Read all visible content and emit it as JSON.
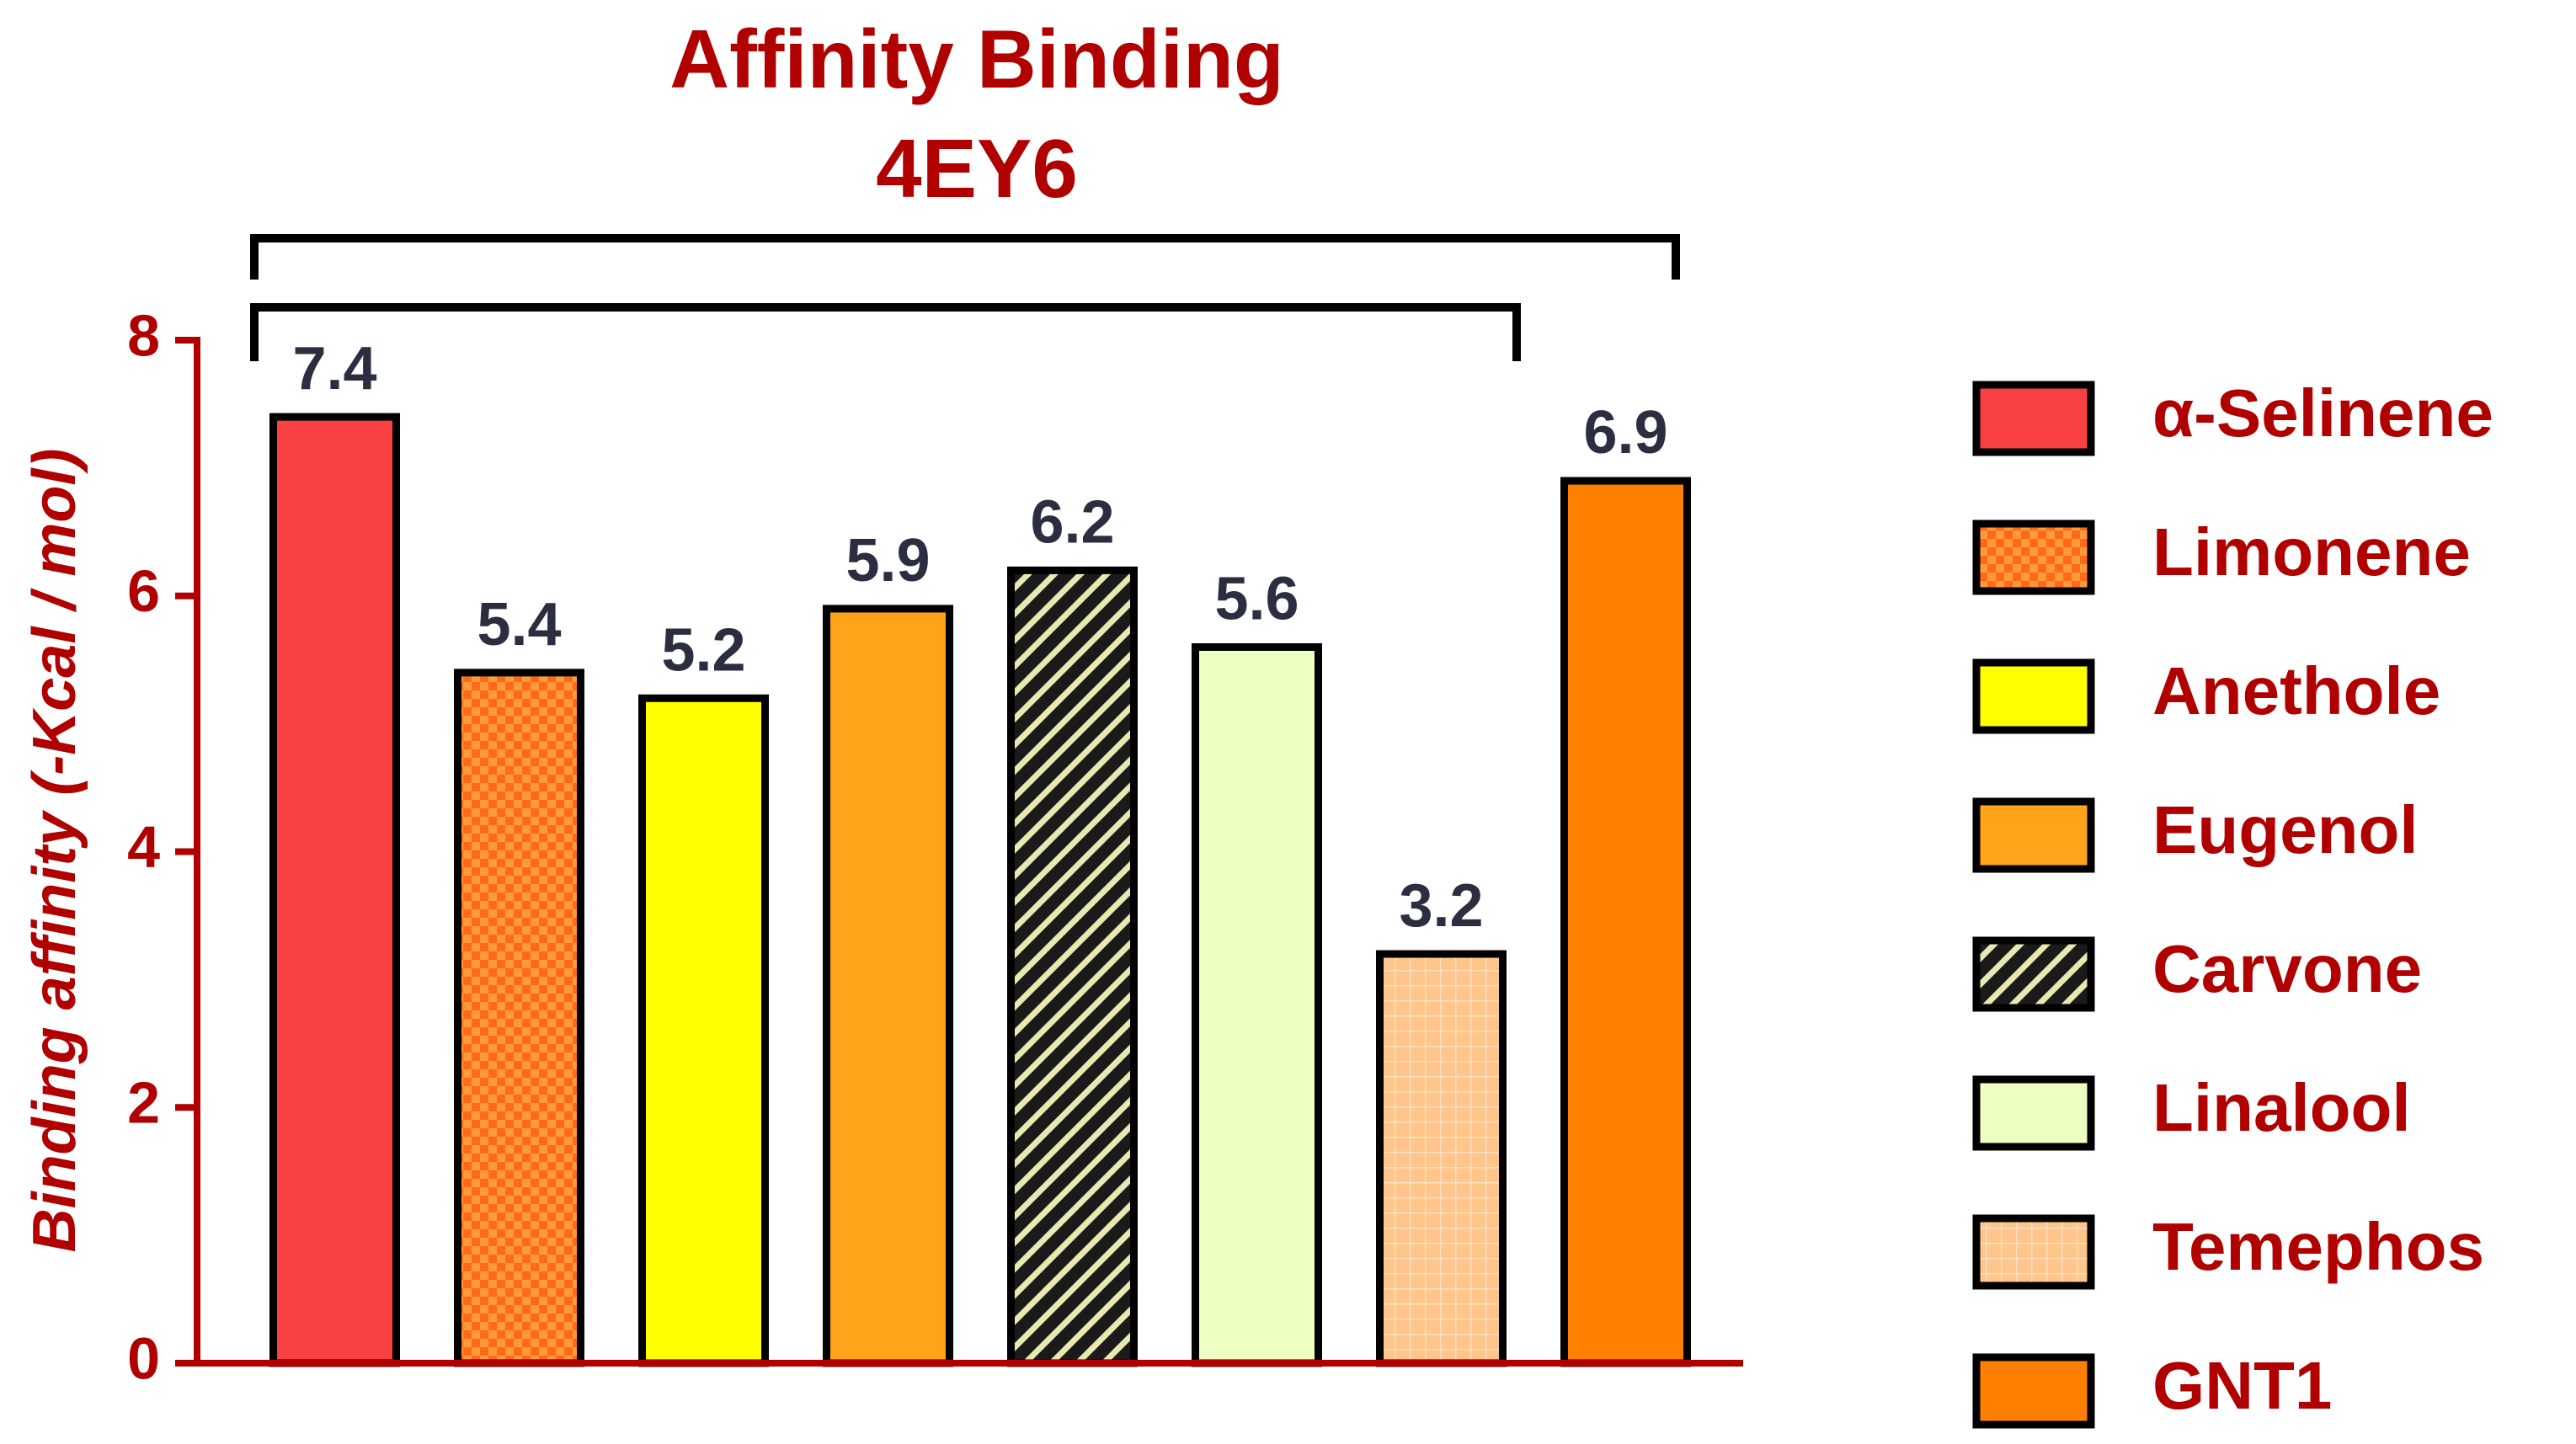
{
  "chart_data": {
    "type": "bar",
    "title": [
      "Affinity Binding",
      "4EY6"
    ],
    "y_label": "Binding affinity (-Kcal / mol)",
    "categories": [
      "α-Selinene",
      "Limonene",
      "Anethole",
      "Eugenol",
      "Carvone",
      "Linalool",
      "Temephos",
      "GNT1"
    ],
    "values": [
      7.4,
      5.4,
      5.2,
      5.9,
      6.2,
      5.6,
      3.2,
      6.9
    ],
    "colors": [
      "#f94144",
      "#ff6a1a",
      "#ffff00",
      "#ffa31a",
      "#1a1a1a",
      "#eeffc4",
      "#ffc58a",
      "#ff8000"
    ],
    "patterns": [
      "solid",
      "checker",
      "solid",
      "solid",
      "hatch",
      "solid",
      "grid",
      "solid"
    ],
    "ylim": [
      0,
      8
    ],
    "yticks": [
      0,
      2,
      4,
      6,
      8
    ],
    "legend": "right"
  }
}
